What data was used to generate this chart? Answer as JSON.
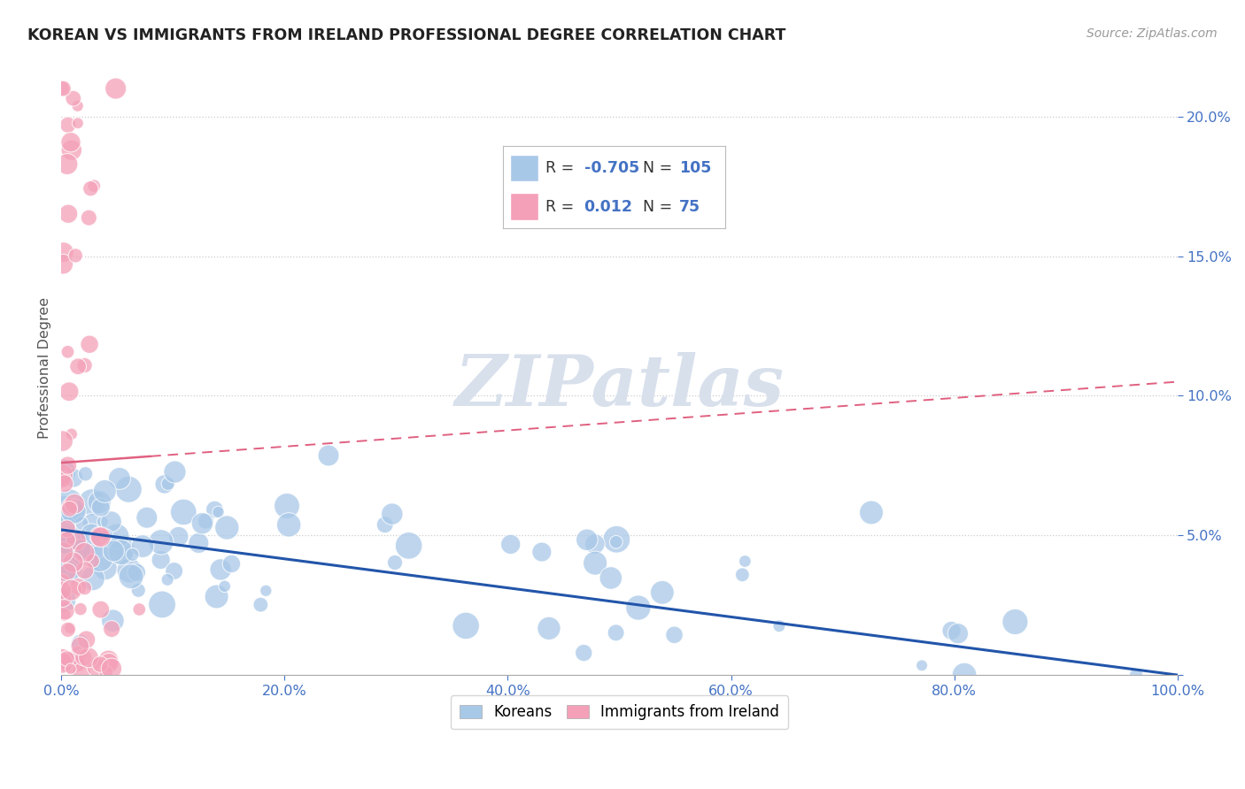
{
  "title": "KOREAN VS IMMIGRANTS FROM IRELAND PROFESSIONAL DEGREE CORRELATION CHART",
  "source": "Source: ZipAtlas.com",
  "ylabel": "Professional Degree",
  "watermark": "ZIPatlas",
  "blue_color": "#a8c8e8",
  "pink_color": "#f4a0b8",
  "trend_blue": "#2255aa",
  "trend_pink": "#e06080",
  "background": "#ffffff",
  "title_color": "#222222",
  "tick_color": "#4472c4",
  "grid_color": "#cccccc",
  "legend_blue_r": "-0.705",
  "legend_blue_n": "105",
  "legend_pink_r": "0.012",
  "legend_pink_n": "75"
}
